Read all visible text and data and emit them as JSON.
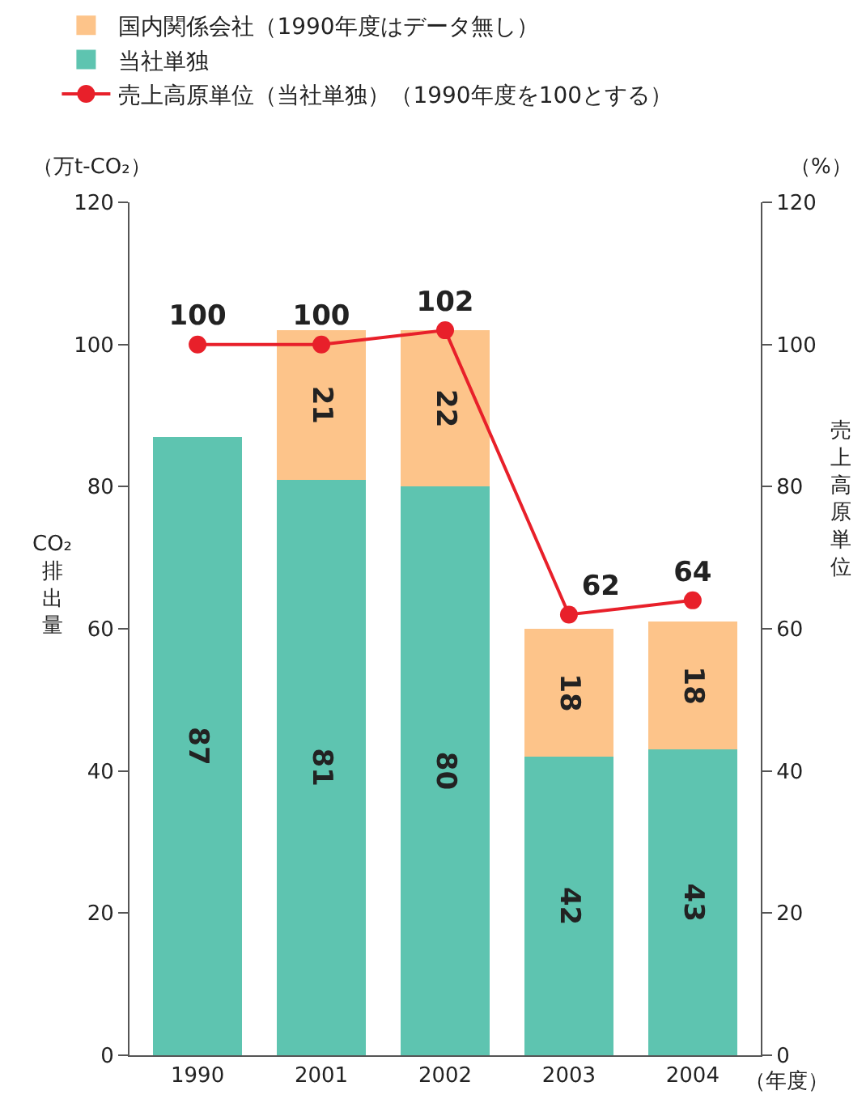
{
  "chart_data": {
    "type": "bar",
    "stacked": true,
    "categories": [
      "1990",
      "2001",
      "2002",
      "2003",
      "2004"
    ],
    "series": [
      {
        "name": "当社単独",
        "color": "#5ec4b0",
        "values": [
          87,
          81,
          80,
          42,
          43
        ]
      },
      {
        "name": "国内関係会社（1990年度はデータ無し）",
        "color": "#fdc48a",
        "values": [
          null,
          21,
          22,
          18,
          18
        ]
      },
      {
        "name": "売上高原単位（当社単独）（1990年度を100とする）",
        "type": "line",
        "axis": "y2",
        "color": "#e8202a",
        "marker": "circle",
        "values": [
          100,
          100,
          102,
          62,
          64
        ]
      }
    ],
    "ylabel": "CO₂排出量",
    "y2label": "売上高原単位",
    "annotations": [
      "（万t-CO₂）",
      "（%）",
      "（年度）"
    ],
    "ylim": [
      0,
      120
    ],
    "yticks": [
      0,
      20,
      40,
      60,
      80,
      100,
      120
    ],
    "y2lim": [
      0,
      120
    ],
    "y2ticks": [
      0,
      20,
      40,
      60,
      80,
      100,
      120
    ],
    "data_labels": true,
    "grid": false,
    "legend": "top left"
  }
}
